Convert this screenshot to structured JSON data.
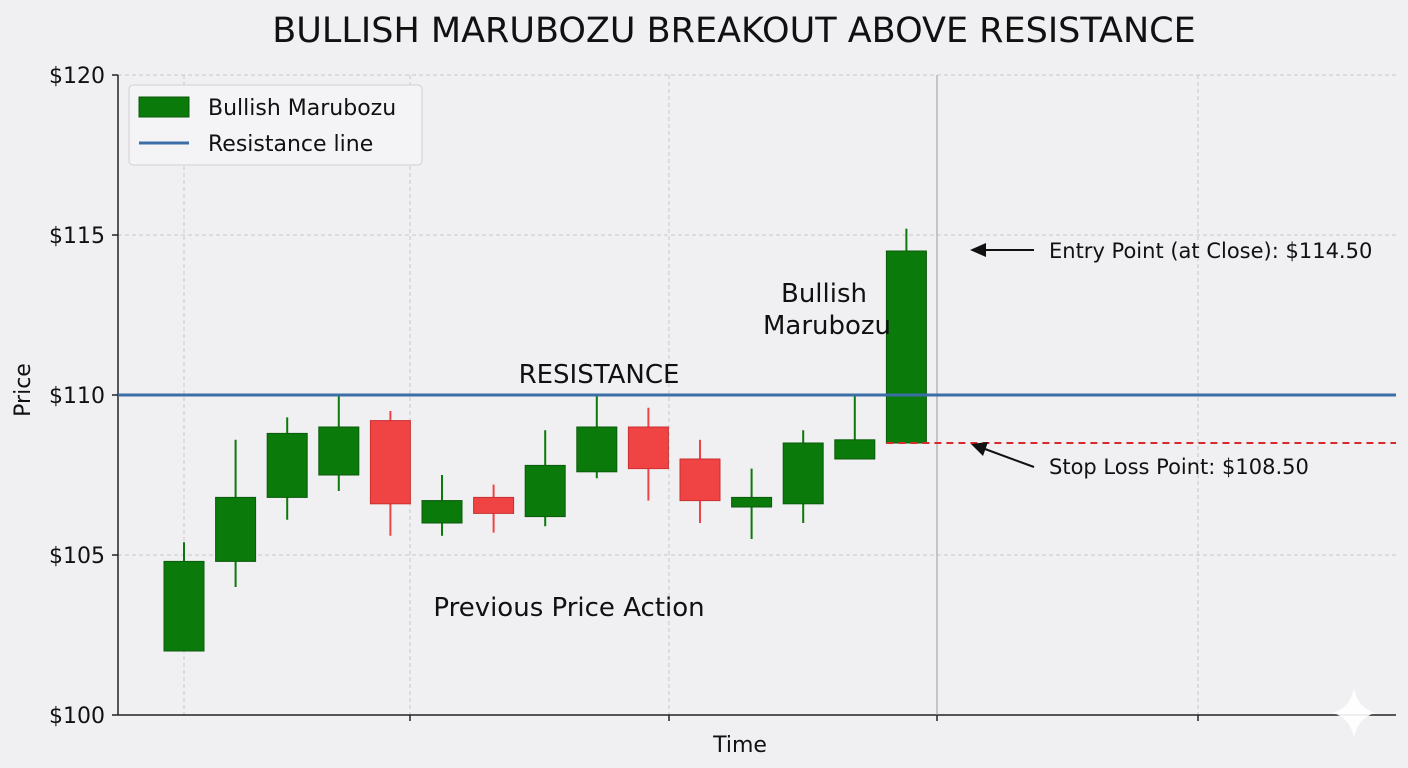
{
  "chart_data": {
    "type": "candlestick",
    "title": "BULLISH MARUBOZU BREAKOUT ABOVE RESISTANCE",
    "xlabel": "Time",
    "ylabel": "Price",
    "ylim": [
      100,
      120
    ],
    "y_ticks": [
      100,
      105,
      110,
      115,
      120
    ],
    "y_tick_labels": [
      "$100",
      "$105",
      "$110",
      "$115",
      "$120"
    ],
    "grid": true,
    "legend": {
      "placement": "top-left",
      "entries": [
        {
          "label": "Bullish Marubozu",
          "kind": "patch",
          "color": "#0a7a0a"
        },
        {
          "label": "Resistance line",
          "kind": "line",
          "color": "#3a6ea5"
        }
      ]
    },
    "candles": [
      {
        "open": 102.0,
        "high": 105.4,
        "low": 102.0,
        "close": 104.8,
        "direction": "up"
      },
      {
        "open": 104.8,
        "high": 108.6,
        "low": 104.0,
        "close": 106.8,
        "direction": "up"
      },
      {
        "open": 106.8,
        "high": 109.3,
        "low": 106.1,
        "close": 108.8,
        "direction": "up"
      },
      {
        "open": 107.5,
        "high": 110.0,
        "low": 107.0,
        "close": 109.0,
        "direction": "up"
      },
      {
        "open": 109.2,
        "high": 109.5,
        "low": 105.6,
        "close": 106.6,
        "direction": "down"
      },
      {
        "open": 106.7,
        "high": 107.5,
        "low": 105.6,
        "close": 106.0,
        "direction": "up"
      },
      {
        "open": 106.8,
        "high": 107.2,
        "low": 105.7,
        "close": 106.3,
        "direction": "down"
      },
      {
        "open": 106.2,
        "high": 108.9,
        "low": 105.9,
        "close": 107.8,
        "direction": "up"
      },
      {
        "open": 107.6,
        "high": 110.0,
        "low": 107.4,
        "close": 109.0,
        "direction": "up"
      },
      {
        "open": 109.0,
        "high": 109.6,
        "low": 106.7,
        "close": 107.7,
        "direction": "down"
      },
      {
        "open": 108.0,
        "high": 108.6,
        "low": 106.0,
        "close": 106.7,
        "direction": "down"
      },
      {
        "open": 106.5,
        "high": 107.7,
        "low": 105.5,
        "close": 106.8,
        "direction": "up"
      },
      {
        "open": 106.6,
        "high": 108.9,
        "low": 106.0,
        "close": 108.5,
        "direction": "up"
      },
      {
        "open": 108.0,
        "high": 110.0,
        "low": 108.0,
        "close": 108.6,
        "direction": "up"
      },
      {
        "open": 108.5,
        "high": 115.2,
        "low": 108.5,
        "close": 114.5,
        "direction": "up"
      }
    ],
    "resistance_level": 110.0,
    "stop_loss_level": 108.5,
    "annotations": {
      "resistance_label": "RESISTANCE",
      "marubozu_label_line1": "Bullish",
      "marubozu_label_line2": "Marubozu",
      "previous_action_label": "Previous Price Action",
      "entry_label": "Entry Point (at Close): $114.50",
      "stop_label": "Stop Loss Point: $108.50"
    },
    "colors": {
      "bullish": "#0a7a0a",
      "bearish": "#f04444",
      "resistance": "#3a6ea5",
      "stop_loss": "#d82a2a",
      "grid": "#c8c8cc",
      "background": "#f0f0f2"
    }
  }
}
